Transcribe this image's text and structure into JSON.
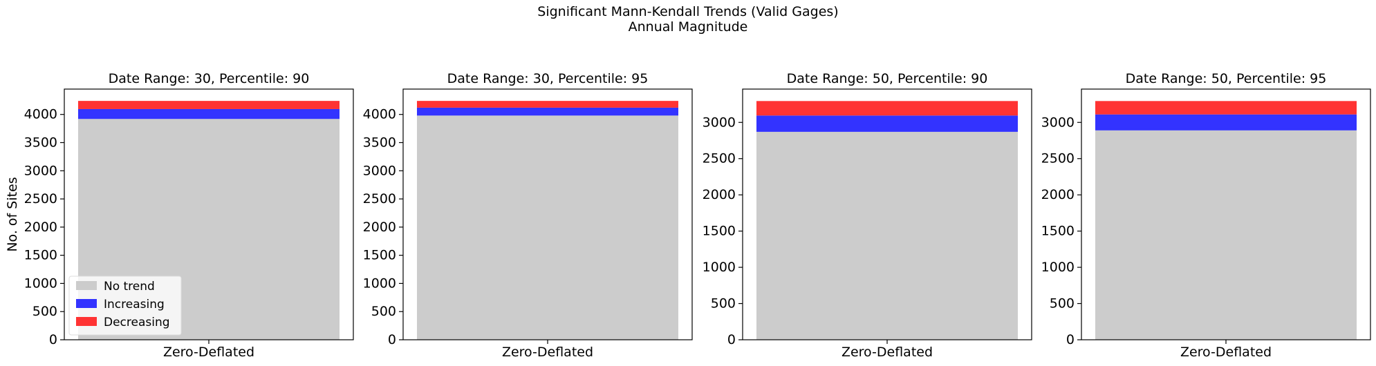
{
  "figure": {
    "title_line1": "Significant Mann-Kendall Trends (Valid Gages)",
    "title_line2": "Annual Magnitude",
    "colors": {
      "no_trend": "#cccccc",
      "increasing": "#3333ff",
      "decreasing": "#ff3333"
    }
  },
  "chart_data": [
    {
      "type": "bar",
      "title": "Date Range: 30, Percentile: 90",
      "categories": [
        "Zero-Deflated"
      ],
      "ylabel": "No. of Sites",
      "ylim": [
        0,
        4450
      ],
      "yticks": [
        0,
        500,
        1000,
        1500,
        2000,
        2500,
        3000,
        3500,
        4000
      ],
      "series": [
        {
          "name": "No trend",
          "values": [
            3920
          ]
        },
        {
          "name": "Increasing",
          "values": [
            175
          ]
        },
        {
          "name": "Decreasing",
          "values": [
            145
          ]
        }
      ],
      "legend": {
        "position": "lower-left",
        "entries": [
          "No trend",
          "Increasing",
          "Decreasing"
        ]
      }
    },
    {
      "type": "bar",
      "title": "Date Range: 30, Percentile: 95",
      "categories": [
        "Zero-Deflated"
      ],
      "ylabel": "",
      "ylim": [
        0,
        4450
      ],
      "yticks": [
        0,
        500,
        1000,
        1500,
        2000,
        2500,
        3000,
        3500,
        4000
      ],
      "series": [
        {
          "name": "No trend",
          "values": [
            3980
          ]
        },
        {
          "name": "Increasing",
          "values": [
            140
          ]
        },
        {
          "name": "Decreasing",
          "values": [
            120
          ]
        }
      ]
    },
    {
      "type": "bar",
      "title": "Date Range: 50, Percentile: 90",
      "categories": [
        "Zero-Deflated"
      ],
      "ylabel": "",
      "ylim": [
        0,
        3460
      ],
      "yticks": [
        0,
        500,
        1000,
        1500,
        2000,
        2500,
        3000
      ],
      "series": [
        {
          "name": "No trend",
          "values": [
            2870
          ]
        },
        {
          "name": "Increasing",
          "values": [
            225
          ]
        },
        {
          "name": "Decreasing",
          "values": [
            200
          ]
        }
      ]
    },
    {
      "type": "bar",
      "title": "Date Range: 50, Percentile: 95",
      "categories": [
        "Zero-Deflated"
      ],
      "ylabel": "",
      "ylim": [
        0,
        3460
      ],
      "yticks": [
        0,
        500,
        1000,
        1500,
        2000,
        2500,
        3000
      ],
      "series": [
        {
          "name": "No trend",
          "values": [
            2890
          ]
        },
        {
          "name": "Increasing",
          "values": [
            220
          ]
        },
        {
          "name": "Decreasing",
          "values": [
            185
          ]
        }
      ]
    }
  ]
}
